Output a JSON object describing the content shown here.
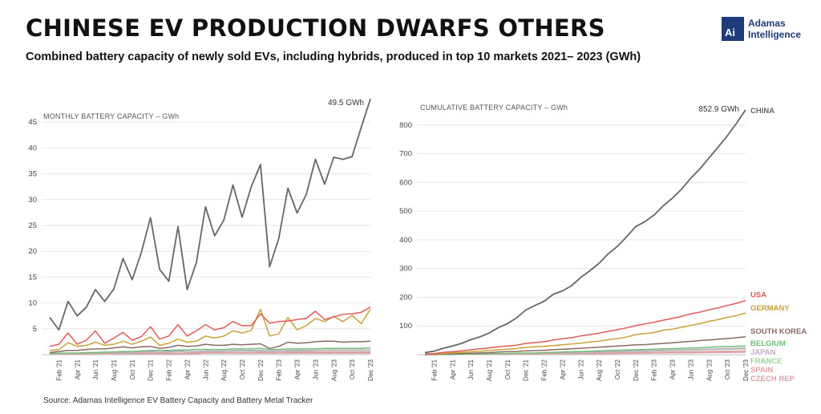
{
  "header": {
    "title": "CHINESE EV PRODUCTION DWARFS OTHERS",
    "subtitle": "Combined battery capacity of newly sold EVs, including hybrids, produced in top 10 markets 2021– 2023 (GWh)",
    "logo_mark": "Ai",
    "logo_line1": "Adamas",
    "logo_line2": "Intelligence",
    "brand_color": "#1f3b7a"
  },
  "source": "Source: Adamas Intelligence EV Battery Capacity and Battery Metal Tracker",
  "chart_data": [
    {
      "type": "line",
      "title": "MONTHLY BATTERY CAPACITY – GWh",
      "ylim": [
        0,
        50
      ],
      "yticks": [
        5,
        10,
        15,
        20,
        25,
        30,
        35,
        40,
        45
      ],
      "x_tick_labels": [
        "Feb '21",
        "Apr '21",
        "Jun '21",
        "Aug '21",
        "Oct '21",
        "Dec '21",
        "Feb '22",
        "Apr '22",
        "Jun '22",
        "Aug '22",
        "Oct '22",
        "Dec '22",
        "Feb '23",
        "Apr '23",
        "Jun '23",
        "Aug '23",
        "Oct '23",
        "Dec '23"
      ],
      "x": [
        "Jan '21",
        "Feb '21",
        "Mar '21",
        "Apr '21",
        "May '21",
        "Jun '21",
        "Jul '21",
        "Aug '21",
        "Sep '21",
        "Oct '21",
        "Nov '21",
        "Dec '21",
        "Jan '22",
        "Feb '22",
        "Mar '22",
        "Apr '22",
        "May '22",
        "Jun '22",
        "Jul '22",
        "Aug '22",
        "Sep '22",
        "Oct '22",
        "Nov '22",
        "Dec '22",
        "Jan '23",
        "Feb '23",
        "Mar '23",
        "Apr '23",
        "May '23",
        "Jun '23",
        "Jul '23",
        "Aug '23",
        "Sep '23",
        "Oct '23",
        "Nov '23",
        "Dec '23"
      ],
      "annotation": "49.5 GWh",
      "grid": true,
      "series": [
        {
          "name": "CHINA",
          "color": "#666666",
          "values": [
            7.2,
            4.8,
            10.3,
            7.5,
            9.2,
            12.6,
            10.3,
            12.7,
            18.6,
            14.5,
            19.8,
            26.5,
            16.5,
            14.2,
            24.8,
            12.6,
            17.8,
            28.6,
            23.0,
            26.0,
            32.8,
            26.6,
            32.5,
            36.8,
            17.0,
            22.5,
            32.2,
            27.4,
            31.0,
            37.8,
            33.0,
            38.2,
            37.8,
            38.3,
            44.0,
            49.5
          ]
        },
        {
          "name": "USA",
          "color": "#e05a5a",
          "values": [
            1.6,
            2.0,
            4.2,
            2.0,
            2.8,
            4.6,
            2.2,
            3.2,
            4.3,
            2.8,
            3.5,
            5.4,
            3.0,
            3.6,
            5.8,
            3.6,
            4.6,
            5.8,
            4.8,
            5.2,
            6.4,
            5.6,
            5.6,
            7.9,
            6.1,
            6.4,
            6.5,
            6.8,
            7.0,
            8.4,
            6.8,
            7.3,
            7.8,
            7.9,
            8.2,
            9.2
          ]
        },
        {
          "name": "GERMANY",
          "color": "#c9a23a",
          "values": [
            0.8,
            1.0,
            2.3,
            1.6,
            1.8,
            2.4,
            1.8,
            2.0,
            2.6,
            2.0,
            2.6,
            3.4,
            1.8,
            2.2,
            3.0,
            2.4,
            2.6,
            3.6,
            3.2,
            3.6,
            4.6,
            4.2,
            4.7,
            8.8,
            3.6,
            4.0,
            7.2,
            4.8,
            5.6,
            7.0,
            6.4,
            7.4,
            6.4,
            7.6,
            6.0,
            8.8
          ]
        },
        {
          "name": "SOUTH KOREA",
          "color": "#8a6a62",
          "values": [
            0.4,
            0.6,
            0.8,
            0.8,
            1.0,
            1.1,
            1.1,
            1.3,
            1.5,
            1.3,
            1.5,
            1.6,
            1.2,
            1.4,
            1.8,
            1.6,
            1.7,
            2.0,
            1.8,
            1.8,
            2.0,
            1.9,
            2.0,
            2.1,
            1.2,
            1.6,
            2.4,
            2.2,
            2.3,
            2.5,
            2.6,
            2.6,
            2.4,
            2.5,
            2.5,
            2.6
          ]
        },
        {
          "name": "BELGIUM",
          "color": "#6fbf73",
          "values": [
            0.2,
            0.3,
            0.3,
            0.3,
            0.4,
            0.4,
            0.5,
            0.5,
            0.6,
            0.6,
            0.7,
            0.8,
            0.8,
            0.8,
            0.9,
            0.9,
            1.0,
            1.0,
            1.0,
            1.0,
            1.1,
            1.1,
            1.1,
            1.2,
            1.0,
            1.0,
            1.1,
            1.1,
            1.1,
            1.1,
            1.2,
            1.2,
            1.2,
            1.2,
            1.2,
            1.3
          ]
        },
        {
          "name": "JAPAN",
          "color": "#c8a8c8",
          "values": [
            0.2,
            0.2,
            0.3,
            0.3,
            0.3,
            0.4,
            0.4,
            0.4,
            0.5,
            0.5,
            0.5,
            0.6,
            0.5,
            0.6,
            0.7,
            0.6,
            0.6,
            0.7,
            0.7,
            0.7,
            0.8,
            0.8,
            0.8,
            0.8,
            0.7,
            0.7,
            0.8,
            0.8,
            0.8,
            0.8,
            0.9,
            0.9,
            0.9,
            0.9,
            0.9,
            0.9
          ]
        },
        {
          "name": "FRANCE",
          "color": "#9bd49b",
          "values": [
            0.2,
            0.2,
            0.3,
            0.3,
            0.3,
            0.3,
            0.4,
            0.4,
            0.4,
            0.4,
            0.5,
            0.5,
            0.5,
            0.5,
            0.6,
            0.5,
            0.6,
            0.6,
            0.6,
            0.6,
            0.7,
            0.7,
            0.7,
            0.7,
            0.6,
            0.7,
            0.7,
            0.7,
            0.7,
            0.8,
            0.8,
            0.8,
            0.8,
            0.8,
            0.8,
            0.8
          ]
        },
        {
          "name": "SPAIN",
          "color": "#e3a0a0",
          "values": [
            0.1,
            0.1,
            0.2,
            0.2,
            0.2,
            0.2,
            0.2,
            0.2,
            0.3,
            0.3,
            0.3,
            0.3,
            0.3,
            0.3,
            0.3,
            0.3,
            0.4,
            0.4,
            0.4,
            0.4,
            0.4,
            0.4,
            0.4,
            0.5,
            0.4,
            0.4,
            0.5,
            0.5,
            0.5,
            0.5,
            0.5,
            0.5,
            0.5,
            0.5,
            0.5,
            0.5
          ]
        },
        {
          "name": "CZECH REP",
          "color": "#d9a0a8",
          "values": [
            0.1,
            0.1,
            0.1,
            0.1,
            0.1,
            0.1,
            0.2,
            0.2,
            0.2,
            0.2,
            0.2,
            0.2,
            0.2,
            0.2,
            0.2,
            0.2,
            0.2,
            0.3,
            0.3,
            0.3,
            0.3,
            0.3,
            0.3,
            0.3,
            0.3,
            0.3,
            0.3,
            0.3,
            0.3,
            0.3,
            0.3,
            0.3,
            0.3,
            0.3,
            0.3,
            0.3
          ]
        }
      ]
    },
    {
      "type": "line",
      "title": "CUMULATIVE BATTERY CAPACITY – GWh",
      "ylim": [
        0,
        900
      ],
      "yticks": [
        100,
        200,
        300,
        400,
        500,
        600,
        700,
        800
      ],
      "x_tick_labels": [
        "Feb '21",
        "Apr '21",
        "Jun '21",
        "Aug '21",
        "Oct '21",
        "Dec '21",
        "Feb '22",
        "Apr '22",
        "Jun '22",
        "Aug '22",
        "Oct '22",
        "Dec '22",
        "Feb '23",
        "Apr '23",
        "Jun '23",
        "Aug '23",
        "Oct '23",
        "Dec '23"
      ],
      "x": [
        "Jan '21",
        "Feb '21",
        "Mar '21",
        "Apr '21",
        "May '21",
        "Jun '21",
        "Jul '21",
        "Aug '21",
        "Sep '21",
        "Oct '21",
        "Nov '21",
        "Dec '21",
        "Jan '22",
        "Feb '22",
        "Mar '22",
        "Apr '22",
        "May '22",
        "Jun '22",
        "Jul '22",
        "Aug '22",
        "Sep '22",
        "Oct '22",
        "Nov '22",
        "Dec '22",
        "Jan '23",
        "Feb '23",
        "Mar '23",
        "Apr '23",
        "May '23",
        "Jun '23",
        "Jul '23",
        "Aug '23",
        "Sep '23",
        "Oct '23",
        "Nov '23",
        "Dec '23"
      ],
      "annotation": "852.9 GWh",
      "grid": true,
      "series": [
        {
          "name": "CHINA",
          "color": "#666666",
          "values": [
            7,
            12,
            22,
            30,
            39,
            52,
            62,
            75,
            94,
            108,
            128,
            155,
            171,
            186,
            210,
            222,
            240,
            269,
            292,
            318,
            351,
            377,
            410,
            446,
            463,
            486,
            518,
            545,
            576,
            614,
            647,
            685,
            723,
            762,
            806,
            852.9
          ]
        },
        {
          "name": "USA",
          "color": "#e05a5a",
          "values": [
            2,
            4,
            8,
            10,
            13,
            17,
            20,
            23,
            27,
            30,
            33,
            39,
            42,
            45,
            51,
            55,
            59,
            65,
            70,
            75,
            81,
            87,
            93,
            101,
            107,
            113,
            120,
            126,
            133,
            142,
            148,
            156,
            163,
            171,
            179,
            188
          ]
        },
        {
          "name": "GERMANY",
          "color": "#c9a23a",
          "values": [
            1,
            2,
            4,
            6,
            8,
            10,
            12,
            14,
            17,
            19,
            21,
            25,
            27,
            29,
            32,
            34,
            37,
            40,
            44,
            47,
            52,
            56,
            61,
            70,
            73,
            77,
            85,
            89,
            95,
            102,
            108,
            116,
            122,
            130,
            136,
            145
          ]
        },
        {
          "name": "SOUTH KOREA",
          "color": "#8a6a62",
          "values": [
            0.4,
            1,
            2,
            3,
            4,
            5,
            6,
            7,
            9,
            10,
            11,
            13,
            14,
            15,
            17,
            19,
            20,
            22,
            24,
            26,
            28,
            30,
            32,
            34,
            35,
            37,
            39,
            41,
            44,
            46,
            49,
            51,
            54,
            56,
            59,
            62
          ]
        },
        {
          "name": "BELGIUM",
          "color": "#6fbf73",
          "values": [
            0.2,
            0.5,
            0.8,
            1,
            1.5,
            2,
            2.5,
            3,
            3.5,
            4,
            5,
            5.5,
            6,
            7,
            8,
            9,
            10,
            11,
            12,
            13,
            14,
            15,
            16,
            17,
            18,
            19,
            20,
            21,
            22,
            23,
            24,
            26,
            27,
            28,
            29,
            30
          ]
        },
        {
          "name": "JAPAN",
          "color": "#c8a8c8",
          "values": [
            0.2,
            0.4,
            0.7,
            1,
            1.3,
            1.7,
            2.1,
            2.5,
            3,
            3.5,
            4,
            4.6,
            5.1,
            5.7,
            6.4,
            7,
            7.6,
            8.3,
            9,
            9.7,
            10.5,
            11.3,
            12.1,
            12.9,
            13.6,
            14.3,
            15.1,
            15.9,
            16.7,
            17.5,
            18.4,
            19.3,
            20.2,
            21.1,
            22,
            22.9
          ]
        },
        {
          "name": "FRANCE",
          "color": "#9bd49b",
          "values": [
            0.2,
            0.4,
            0.7,
            1,
            1.3,
            1.6,
            2,
            2.4,
            2.8,
            3.2,
            3.7,
            4.2,
            4.7,
            5.2,
            5.8,
            6.3,
            6.9,
            7.5,
            8.1,
            8.7,
            9.4,
            10.1,
            10.8,
            11.5,
            12.1,
            12.8,
            13.5,
            14.2,
            14.9,
            15.7,
            16.5,
            17.3,
            18.1,
            18.9,
            19.7,
            20.5
          ]
        },
        {
          "name": "SPAIN",
          "color": "#e3a0a0",
          "values": [
            0.1,
            0.2,
            0.4,
            0.6,
            0.8,
            1,
            1.2,
            1.4,
            1.7,
            2,
            2.3,
            2.6,
            2.9,
            3.2,
            3.5,
            3.8,
            4.2,
            4.6,
            5,
            5.4,
            5.8,
            6.2,
            6.6,
            7.1,
            7.5,
            7.9,
            8.4,
            8.9,
            9.4,
            9.9,
            10.4,
            10.9,
            11.4,
            11.9,
            12.4,
            12.9
          ]
        },
        {
          "name": "CZECH REP",
          "color": "#d9a0a8",
          "values": [
            0.1,
            0.2,
            0.3,
            0.4,
            0.5,
            0.6,
            0.8,
            1,
            1.2,
            1.4,
            1.6,
            1.8,
            2,
            2.2,
            2.4,
            2.6,
            2.8,
            3.1,
            3.4,
            3.7,
            4,
            4.3,
            4.6,
            4.9,
            5.2,
            5.5,
            5.8,
            6.1,
            6.4,
            6.7,
            7,
            7.3,
            7.6,
            7.9,
            8.2,
            8.5
          ]
        }
      ]
    }
  ]
}
